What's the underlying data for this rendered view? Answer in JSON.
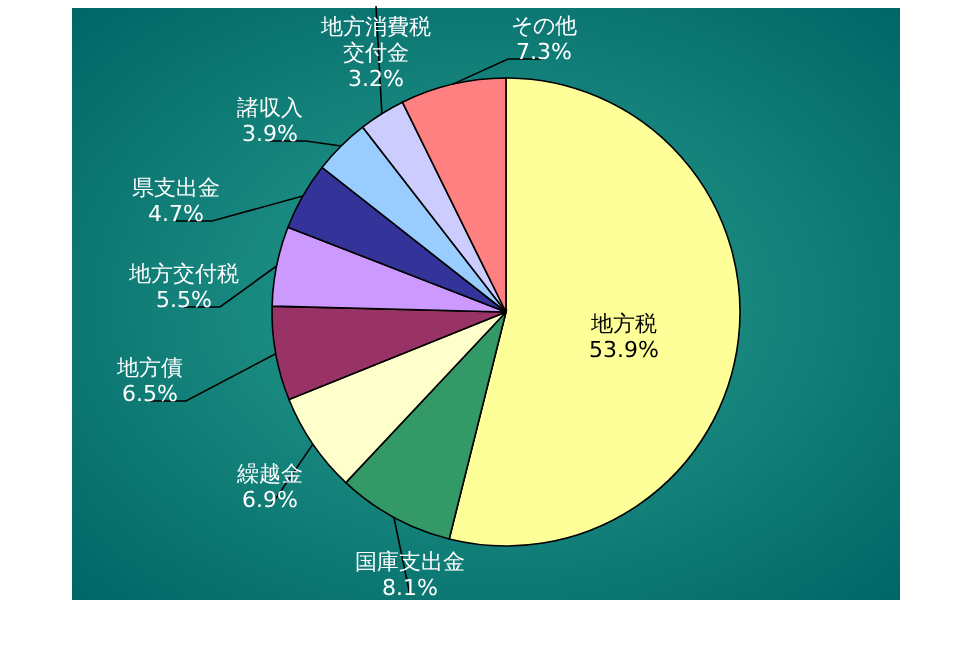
{
  "chart_data": {
    "type": "pie",
    "categories": [
      "地方税",
      "国庫支出金",
      "繰越金",
      "地方債",
      "地方交付税",
      "県支出金",
      "諸収入",
      "地方消費税交付金",
      "その他"
    ],
    "values": [
      53.9,
      8.1,
      6.9,
      6.5,
      5.5,
      4.7,
      3.9,
      3.2,
      7.3
    ],
    "value_labels": [
      "53.9%",
      "8.1%",
      "6.9%",
      "6.5%",
      "5.5%",
      "4.7%",
      "3.9%",
      "3.2%",
      "7.3%"
    ],
    "colors": [
      "#ffff99",
      "#339966",
      "#ffffcc",
      "#993366",
      "#cc99ff",
      "#333399",
      "#99ccff",
      "#ccccff",
      "#ff8080"
    ],
    "legend": false
  }
}
